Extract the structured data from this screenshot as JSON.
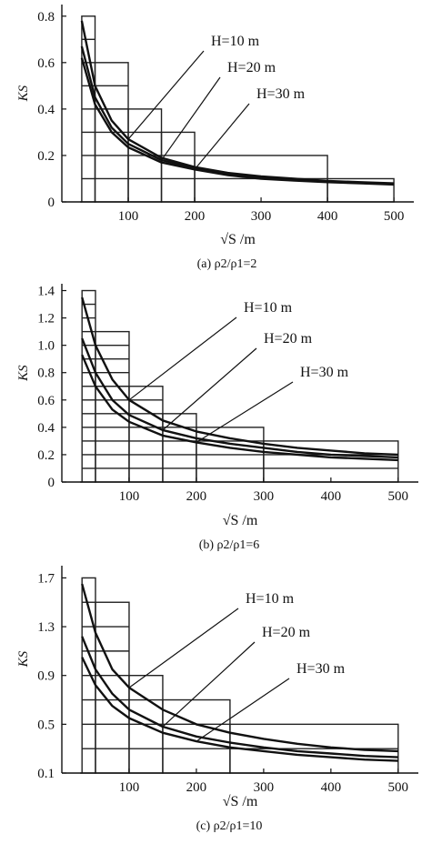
{
  "chart_data": [
    {
      "type": "line",
      "caption": "(a) ρ2/ρ1=2",
      "xlabel": "√S /m",
      "ylabel": "KS",
      "xlim": [
        0,
        530
      ],
      "ylim": [
        0,
        0.85
      ],
      "x_ticks": [
        "100",
        "200",
        "300",
        "400",
        "500"
      ],
      "y_ticks": [
        "0",
        "0.2",
        "0.4",
        "0.6",
        "0.8"
      ],
      "grid": true,
      "step_cells": [
        {
          "x0": 30,
          "x1": 50,
          "top": 0.8
        },
        {
          "x0": 50,
          "x1": 100,
          "top": 0.6
        },
        {
          "x0": 100,
          "x1": 150,
          "top": 0.4
        },
        {
          "x0": 150,
          "x1": 200,
          "top": 0.3
        },
        {
          "x0": 200,
          "x1": 400,
          "top": 0.2
        },
        {
          "x0": 400,
          "x1": 500,
          "top": 0.1
        }
      ],
      "series": [
        {
          "name": "H=10 m",
          "x": [
            30,
            50,
            75,
            100,
            150,
            200,
            250,
            300,
            350,
            400,
            450,
            500
          ],
          "y": [
            0.78,
            0.5,
            0.35,
            0.27,
            0.19,
            0.15,
            0.125,
            0.11,
            0.1,
            0.09,
            0.085,
            0.08
          ]
        },
        {
          "name": "H=20 m",
          "x": [
            30,
            50,
            75,
            100,
            150,
            200,
            250,
            300,
            350,
            400,
            450,
            500
          ],
          "y": [
            0.67,
            0.45,
            0.32,
            0.25,
            0.18,
            0.145,
            0.12,
            0.105,
            0.095,
            0.088,
            0.082,
            0.078
          ]
        },
        {
          "name": "H=30 m",
          "x": [
            30,
            50,
            75,
            100,
            150,
            200,
            250,
            300,
            350,
            400,
            450,
            500
          ],
          "y": [
            0.62,
            0.42,
            0.3,
            0.235,
            0.17,
            0.14,
            0.115,
            0.1,
            0.092,
            0.085,
            0.08,
            0.075
          ]
        }
      ]
    },
    {
      "type": "line",
      "caption": "(b) ρ2/ρ1=6",
      "xlabel": "√S /m",
      "ylabel": "KS",
      "xlim": [
        0,
        530
      ],
      "ylim": [
        0,
        1.45
      ],
      "x_ticks": [
        "100",
        "200",
        "300",
        "400",
        "500"
      ],
      "y_ticks": [
        "0",
        "0.2",
        "0.4",
        "0.6",
        "0.8",
        "1.0",
        "1.2",
        "1.4"
      ],
      "grid": true,
      "step_cells": [
        {
          "x0": 30,
          "x1": 50,
          "top": 1.4
        },
        {
          "x0": 50,
          "x1": 100,
          "top": 1.1
        },
        {
          "x0": 100,
          "x1": 150,
          "top": 0.7
        },
        {
          "x0": 150,
          "x1": 200,
          "top": 0.5
        },
        {
          "x0": 200,
          "x1": 300,
          "top": 0.4
        },
        {
          "x0": 300,
          "x1": 500,
          "top": 0.3
        }
      ],
      "series": [
        {
          "name": "H=10 m",
          "x": [
            30,
            50,
            75,
            100,
            150,
            200,
            250,
            300,
            350,
            400,
            450,
            500
          ],
          "y": [
            1.35,
            1.0,
            0.75,
            0.6,
            0.45,
            0.37,
            0.32,
            0.28,
            0.25,
            0.23,
            0.21,
            0.2
          ]
        },
        {
          "name": "H=20 m",
          "x": [
            30,
            50,
            75,
            100,
            150,
            200,
            250,
            300,
            350,
            400,
            450,
            500
          ],
          "y": [
            1.05,
            0.8,
            0.6,
            0.49,
            0.38,
            0.32,
            0.28,
            0.25,
            0.22,
            0.2,
            0.19,
            0.18
          ]
        },
        {
          "name": "H=30 m",
          "x": [
            30,
            50,
            75,
            100,
            150,
            200,
            250,
            300,
            350,
            400,
            450,
            500
          ],
          "y": [
            0.93,
            0.7,
            0.53,
            0.44,
            0.34,
            0.29,
            0.25,
            0.22,
            0.2,
            0.18,
            0.17,
            0.16
          ]
        }
      ]
    },
    {
      "type": "line",
      "caption": "(c) ρ2/ρ1=10",
      "xlabel": "√S /m",
      "ylabel": "KS",
      "xlim": [
        0,
        530
      ],
      "ylim": [
        0.1,
        1.8
      ],
      "x_ticks": [
        "100",
        "200",
        "300",
        "400",
        "500"
      ],
      "y_ticks": [
        "0.1",
        "0.5",
        "0.9",
        "1.3",
        "1.7"
      ],
      "grid": true,
      "step_cells": [
        {
          "x0": 30,
          "x1": 50,
          "top": 1.7
        },
        {
          "x0": 50,
          "x1": 100,
          "top": 1.5
        },
        {
          "x0": 100,
          "x1": 150,
          "top": 0.9
        },
        {
          "x0": 150,
          "x1": 250,
          "top": 0.7
        },
        {
          "x0": 250,
          "x1": 500,
          "top": 0.5
        }
      ],
      "series": [
        {
          "name": "H=10 m",
          "x": [
            30,
            50,
            75,
            100,
            150,
            200,
            250,
            300,
            350,
            400,
            450,
            500
          ],
          "y": [
            1.65,
            1.25,
            0.95,
            0.8,
            0.62,
            0.5,
            0.43,
            0.38,
            0.34,
            0.31,
            0.29,
            0.28
          ]
        },
        {
          "name": "H=20 m",
          "x": [
            30,
            50,
            75,
            100,
            150,
            200,
            250,
            300,
            350,
            400,
            450,
            500
          ],
          "y": [
            1.22,
            0.95,
            0.75,
            0.62,
            0.48,
            0.4,
            0.35,
            0.31,
            0.28,
            0.26,
            0.24,
            0.23
          ]
        },
        {
          "name": "H=30 m",
          "x": [
            30,
            50,
            75,
            100,
            150,
            200,
            250,
            300,
            350,
            400,
            450,
            500
          ],
          "y": [
            1.05,
            0.82,
            0.65,
            0.55,
            0.43,
            0.36,
            0.31,
            0.28,
            0.25,
            0.23,
            0.21,
            0.2
          ]
        }
      ]
    }
  ]
}
